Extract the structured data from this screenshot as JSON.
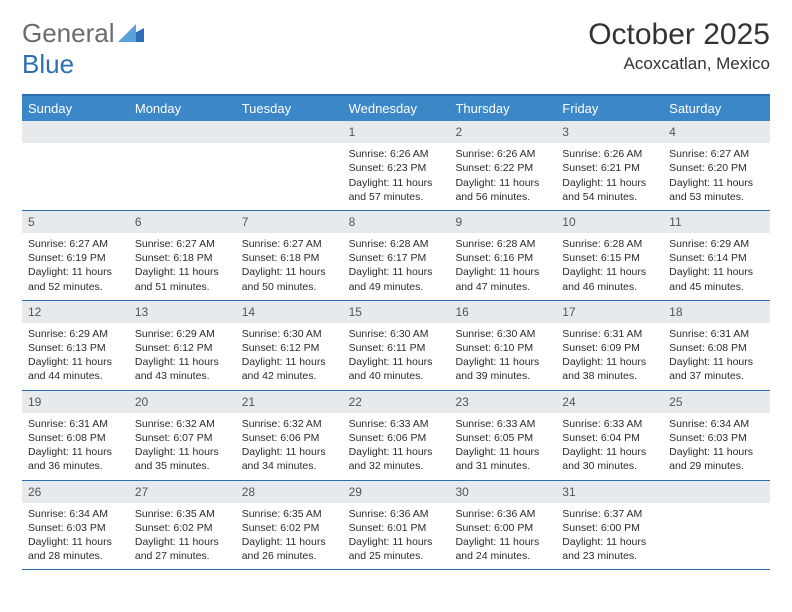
{
  "logo": {
    "text_a": "General",
    "text_b": "Blue",
    "text_color": "#6b6b6b",
    "blue": "#2d6fb5"
  },
  "header": {
    "month": "October 2025",
    "location": "Acoxcatlan, Mexico"
  },
  "colors": {
    "header_bar": "#3b87c8",
    "week_border": "#2d6fb5",
    "daynum_bg": "#e7eaed",
    "text": "#2b2b2b"
  },
  "dow": [
    "Sunday",
    "Monday",
    "Tuesday",
    "Wednesday",
    "Thursday",
    "Friday",
    "Saturday"
  ],
  "weeks": [
    [
      {
        "blank": true
      },
      {
        "blank": true
      },
      {
        "blank": true
      },
      {
        "n": "1",
        "sunrise": "6:26 AM",
        "sunset": "6:23 PM",
        "dl1": "Daylight: 11 hours",
        "dl2": "and 57 minutes."
      },
      {
        "n": "2",
        "sunrise": "6:26 AM",
        "sunset": "6:22 PM",
        "dl1": "Daylight: 11 hours",
        "dl2": "and 56 minutes."
      },
      {
        "n": "3",
        "sunrise": "6:26 AM",
        "sunset": "6:21 PM",
        "dl1": "Daylight: 11 hours",
        "dl2": "and 54 minutes."
      },
      {
        "n": "4",
        "sunrise": "6:27 AM",
        "sunset": "6:20 PM",
        "dl1": "Daylight: 11 hours",
        "dl2": "and 53 minutes."
      }
    ],
    [
      {
        "n": "5",
        "sunrise": "6:27 AM",
        "sunset": "6:19 PM",
        "dl1": "Daylight: 11 hours",
        "dl2": "and 52 minutes."
      },
      {
        "n": "6",
        "sunrise": "6:27 AM",
        "sunset": "6:18 PM",
        "dl1": "Daylight: 11 hours",
        "dl2": "and 51 minutes."
      },
      {
        "n": "7",
        "sunrise": "6:27 AM",
        "sunset": "6:18 PM",
        "dl1": "Daylight: 11 hours",
        "dl2": "and 50 minutes."
      },
      {
        "n": "8",
        "sunrise": "6:28 AM",
        "sunset": "6:17 PM",
        "dl1": "Daylight: 11 hours",
        "dl2": "and 49 minutes."
      },
      {
        "n": "9",
        "sunrise": "6:28 AM",
        "sunset": "6:16 PM",
        "dl1": "Daylight: 11 hours",
        "dl2": "and 47 minutes."
      },
      {
        "n": "10",
        "sunrise": "6:28 AM",
        "sunset": "6:15 PM",
        "dl1": "Daylight: 11 hours",
        "dl2": "and 46 minutes."
      },
      {
        "n": "11",
        "sunrise": "6:29 AM",
        "sunset": "6:14 PM",
        "dl1": "Daylight: 11 hours",
        "dl2": "and 45 minutes."
      }
    ],
    [
      {
        "n": "12",
        "sunrise": "6:29 AM",
        "sunset": "6:13 PM",
        "dl1": "Daylight: 11 hours",
        "dl2": "and 44 minutes."
      },
      {
        "n": "13",
        "sunrise": "6:29 AM",
        "sunset": "6:12 PM",
        "dl1": "Daylight: 11 hours",
        "dl2": "and 43 minutes."
      },
      {
        "n": "14",
        "sunrise": "6:30 AM",
        "sunset": "6:12 PM",
        "dl1": "Daylight: 11 hours",
        "dl2": "and 42 minutes."
      },
      {
        "n": "15",
        "sunrise": "6:30 AM",
        "sunset": "6:11 PM",
        "dl1": "Daylight: 11 hours",
        "dl2": "and 40 minutes."
      },
      {
        "n": "16",
        "sunrise": "6:30 AM",
        "sunset": "6:10 PM",
        "dl1": "Daylight: 11 hours",
        "dl2": "and 39 minutes."
      },
      {
        "n": "17",
        "sunrise": "6:31 AM",
        "sunset": "6:09 PM",
        "dl1": "Daylight: 11 hours",
        "dl2": "and 38 minutes."
      },
      {
        "n": "18",
        "sunrise": "6:31 AM",
        "sunset": "6:08 PM",
        "dl1": "Daylight: 11 hours",
        "dl2": "and 37 minutes."
      }
    ],
    [
      {
        "n": "19",
        "sunrise": "6:31 AM",
        "sunset": "6:08 PM",
        "dl1": "Daylight: 11 hours",
        "dl2": "and 36 minutes."
      },
      {
        "n": "20",
        "sunrise": "6:32 AM",
        "sunset": "6:07 PM",
        "dl1": "Daylight: 11 hours",
        "dl2": "and 35 minutes."
      },
      {
        "n": "21",
        "sunrise": "6:32 AM",
        "sunset": "6:06 PM",
        "dl1": "Daylight: 11 hours",
        "dl2": "and 34 minutes."
      },
      {
        "n": "22",
        "sunrise": "6:33 AM",
        "sunset": "6:06 PM",
        "dl1": "Daylight: 11 hours",
        "dl2": "and 32 minutes."
      },
      {
        "n": "23",
        "sunrise": "6:33 AM",
        "sunset": "6:05 PM",
        "dl1": "Daylight: 11 hours",
        "dl2": "and 31 minutes."
      },
      {
        "n": "24",
        "sunrise": "6:33 AM",
        "sunset": "6:04 PM",
        "dl1": "Daylight: 11 hours",
        "dl2": "and 30 minutes."
      },
      {
        "n": "25",
        "sunrise": "6:34 AM",
        "sunset": "6:03 PM",
        "dl1": "Daylight: 11 hours",
        "dl2": "and 29 minutes."
      }
    ],
    [
      {
        "n": "26",
        "sunrise": "6:34 AM",
        "sunset": "6:03 PM",
        "dl1": "Daylight: 11 hours",
        "dl2": "and 28 minutes."
      },
      {
        "n": "27",
        "sunrise": "6:35 AM",
        "sunset": "6:02 PM",
        "dl1": "Daylight: 11 hours",
        "dl2": "and 27 minutes."
      },
      {
        "n": "28",
        "sunrise": "6:35 AM",
        "sunset": "6:02 PM",
        "dl1": "Daylight: 11 hours",
        "dl2": "and 26 minutes."
      },
      {
        "n": "29",
        "sunrise": "6:36 AM",
        "sunset": "6:01 PM",
        "dl1": "Daylight: 11 hours",
        "dl2": "and 25 minutes."
      },
      {
        "n": "30",
        "sunrise": "6:36 AM",
        "sunset": "6:00 PM",
        "dl1": "Daylight: 11 hours",
        "dl2": "and 24 minutes."
      },
      {
        "n": "31",
        "sunrise": "6:37 AM",
        "sunset": "6:00 PM",
        "dl1": "Daylight: 11 hours",
        "dl2": "and 23 minutes."
      },
      {
        "blank": true
      }
    ]
  ]
}
